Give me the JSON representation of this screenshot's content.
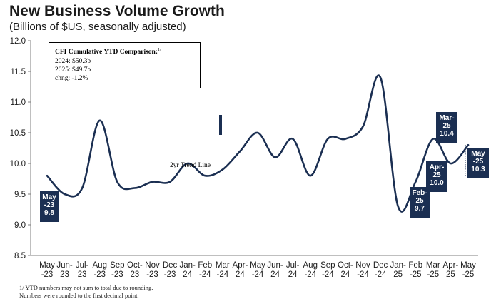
{
  "header": {
    "title": "New Business Volume Growth",
    "subtitle": "(Billions of $US, seasonally adjusted)"
  },
  "ytd_box": {
    "heading": "CFI Cumulative YTD Comparison:",
    "heading_note": "1/",
    "line_2024": "2024: $50.3b",
    "line_2025": "2025: $49.7b",
    "line_chng": "chng: -1.2%"
  },
  "trend_label": "2yr Trend Line",
  "callouts": [
    {
      "text": "May\n-23\n9.8"
    },
    {
      "text": "Feb-\n25\n9.7"
    },
    {
      "text": "Apr-\n25\n10.0"
    },
    {
      "text": "Mar-\n25\n10.4"
    },
    {
      "text": "May\n-25\n10.3"
    }
  ],
  "footnotes": {
    "line1": "1/ YTD numbers may not sum to total due to rounding.",
    "line2": "Numbers were rounded to the first decimal point."
  },
  "colors": {
    "line": "#1b2f52",
    "callout": "#1b2f52",
    "axis": "#7f7f7f"
  },
  "chart_data": {
    "type": "line",
    "title": "New Business Volume Growth",
    "subtitle": "(Billions of $US, seasonally adjusted)",
    "ylim": [
      8.5,
      12.0
    ],
    "yticks": [
      "8.5",
      "9.0",
      "9.5",
      "10.0",
      "10.5",
      "11.0",
      "11.5",
      "12.0"
    ],
    "grid": false,
    "categories": [
      {
        "top": "May",
        "bottom": "-23"
      },
      {
        "top": "Jun-",
        "bottom": "23"
      },
      {
        "top": "Jul-",
        "bottom": "23"
      },
      {
        "top": "Aug",
        "bottom": "-23"
      },
      {
        "top": "Sep",
        "bottom": "-23"
      },
      {
        "top": "Oct-",
        "bottom": "23"
      },
      {
        "top": "Nov",
        "bottom": "-23"
      },
      {
        "top": "Dec",
        "bottom": "-23"
      },
      {
        "top": "Jan-",
        "bottom": "24"
      },
      {
        "top": "Feb",
        "bottom": "-24"
      },
      {
        "top": "Mar",
        "bottom": "-24"
      },
      {
        "top": "Apr-",
        "bottom": "24"
      },
      {
        "top": "May",
        "bottom": "-24"
      },
      {
        "top": "Jun-",
        "bottom": "24"
      },
      {
        "top": "Jul-",
        "bottom": "24"
      },
      {
        "top": "Aug",
        "bottom": "-24"
      },
      {
        "top": "Sep",
        "bottom": "-24"
      },
      {
        "top": "Oct-",
        "bottom": "24"
      },
      {
        "top": "Nov",
        "bottom": "-24"
      },
      {
        "top": "Dec",
        "bottom": "-24"
      },
      {
        "top": "Jan-",
        "bottom": "25"
      },
      {
        "top": "Feb",
        "bottom": "-25"
      },
      {
        "top": "Mar",
        "bottom": "-25"
      },
      {
        "top": "Apr-",
        "bottom": "25"
      },
      {
        "top": "May",
        "bottom": "-25"
      }
    ],
    "series": [
      {
        "values": [
          9.8,
          9.5,
          9.6,
          10.7,
          9.7,
          9.6,
          9.7,
          9.7,
          10.0,
          9.8,
          9.9,
          10.2,
          10.5,
          10.1,
          10.4,
          9.8,
          10.4,
          10.4,
          10.6,
          11.4,
          9.3,
          9.7,
          10.4,
          10.0,
          10.3
        ]
      }
    ]
  }
}
